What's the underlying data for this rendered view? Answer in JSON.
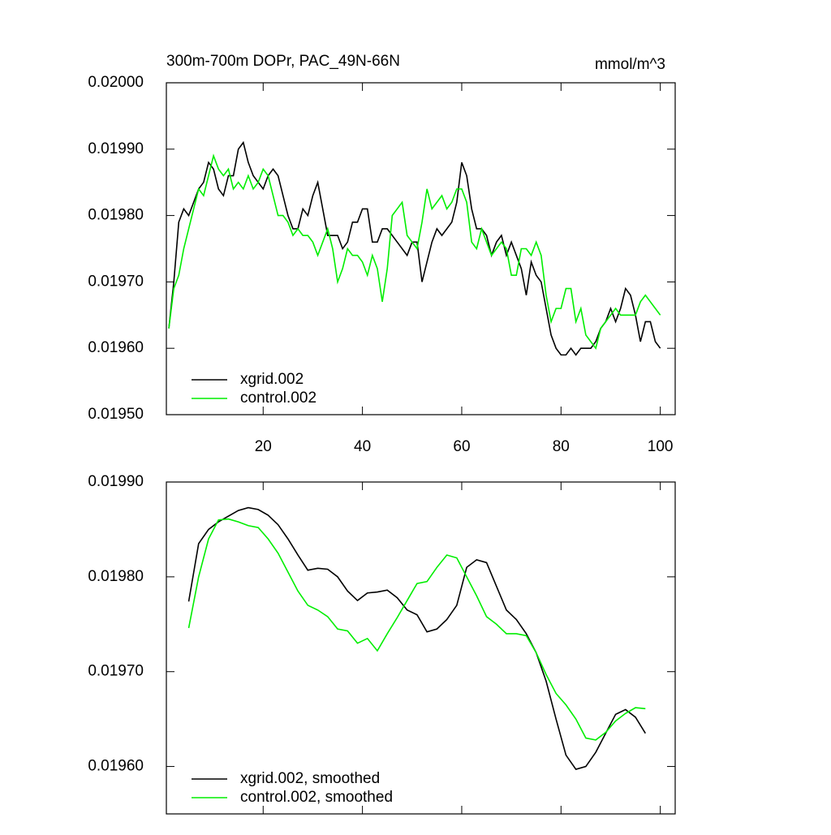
{
  "chart_data": [
    {
      "type": "line",
      "title": "300m-700m DOPr, PAC_49N-66N",
      "units": "mmol/m^3",
      "x": [
        1,
        2,
        3,
        4,
        5,
        6,
        7,
        8,
        9,
        10,
        11,
        12,
        13,
        14,
        15,
        16,
        17,
        18,
        19,
        20,
        21,
        22,
        23,
        24,
        25,
        26,
        27,
        28,
        29,
        30,
        31,
        32,
        33,
        34,
        35,
        36,
        37,
        38,
        39,
        40,
        41,
        42,
        43,
        44,
        45,
        46,
        47,
        48,
        49,
        50,
        51,
        52,
        53,
        54,
        55,
        56,
        57,
        58,
        59,
        60,
        61,
        62,
        63,
        64,
        65,
        66,
        67,
        68,
        69,
        70,
        71,
        72,
        73,
        74,
        75,
        76,
        77,
        78,
        79,
        80,
        81,
        82,
        83,
        84,
        85,
        86,
        87,
        88,
        89,
        90,
        91,
        92,
        93,
        94,
        95,
        96,
        97,
        98,
        99,
        100
      ],
      "series": [
        {
          "name": "xgrid.002",
          "color": "#000000",
          "values": [
            0.01963,
            0.0197,
            0.01979,
            0.01981,
            0.0198,
            0.01982,
            0.01984,
            0.01985,
            0.01988,
            0.01987,
            0.01984,
            0.01983,
            0.01986,
            0.01986,
            0.0199,
            0.01991,
            0.01988,
            0.01986,
            0.01985,
            0.01984,
            0.01986,
            0.01987,
            0.01986,
            0.01983,
            0.0198,
            0.01978,
            0.01978,
            0.01981,
            0.0198,
            0.01983,
            0.01985,
            0.01981,
            0.01977,
            0.01977,
            0.01977,
            0.01975,
            0.01976,
            0.01979,
            0.01979,
            0.01981,
            0.01981,
            0.01976,
            0.01976,
            0.01978,
            0.01978,
            0.01977,
            0.01976,
            0.01975,
            0.01974,
            0.01976,
            0.01976,
            0.0197,
            0.01973,
            0.01976,
            0.01978,
            0.01977,
            0.01978,
            0.01979,
            0.01982,
            0.01988,
            0.01986,
            0.01981,
            0.01978,
            0.01978,
            0.01977,
            0.01974,
            0.01976,
            0.01977,
            0.01974,
            0.01976,
            0.01974,
            0.01972,
            0.01968,
            0.01973,
            0.01971,
            0.0197,
            0.01966,
            0.01962,
            0.0196,
            0.01959,
            0.01959,
            0.0196,
            0.01959,
            0.0196,
            0.0196,
            0.0196,
            0.01961,
            0.01963,
            0.01964,
            0.01966,
            0.01964,
            0.01966,
            0.01969,
            0.01968,
            0.01965,
            0.01961,
            0.01964,
            0.01964,
            0.01961,
            0.0196
          ]
        },
        {
          "name": "control.002",
          "color": "#00ee00",
          "values": [
            0.01963,
            0.01969,
            0.01971,
            0.01975,
            0.01978,
            0.01981,
            0.01984,
            0.01983,
            0.01986,
            0.01989,
            0.01987,
            0.01986,
            0.01987,
            0.01984,
            0.01985,
            0.01984,
            0.01986,
            0.01984,
            0.01985,
            0.01987,
            0.01986,
            0.01983,
            0.0198,
            0.0198,
            0.01979,
            0.01977,
            0.01978,
            0.01977,
            0.01977,
            0.01976,
            0.01974,
            0.01976,
            0.01978,
            0.01975,
            0.0197,
            0.01972,
            0.01975,
            0.01974,
            0.01974,
            0.01973,
            0.01971,
            0.01974,
            0.01972,
            0.01967,
            0.01972,
            0.0198,
            0.01981,
            0.01982,
            0.01977,
            0.01976,
            0.01975,
            0.01979,
            0.01984,
            0.01981,
            0.01982,
            0.01983,
            0.01981,
            0.01982,
            0.01984,
            0.01984,
            0.01982,
            0.01976,
            0.01975,
            0.01978,
            0.01976,
            0.01974,
            0.01975,
            0.01976,
            0.01975,
            0.01971,
            0.01971,
            0.01975,
            0.01975,
            0.01974,
            0.01976,
            0.01974,
            0.01968,
            0.01964,
            0.01966,
            0.01966,
            0.01969,
            0.01969,
            0.01964,
            0.01966,
            0.01962,
            0.01961,
            0.0196,
            0.01963,
            0.01964,
            0.01965,
            0.01966,
            0.01965,
            0.01965,
            0.01965,
            0.01965,
            0.01967,
            0.01968,
            0.01967,
            0.01966,
            0.01965
          ]
        }
      ],
      "xlim": [
        0.5,
        103
      ],
      "xticks": [
        20,
        40,
        60,
        80,
        100
      ],
      "ylim": [
        0.0195,
        0.02
      ],
      "yticks": [
        {
          "value": 0.0195,
          "label": "0.01950"
        },
        {
          "value": 0.0196,
          "label": "0.01960"
        },
        {
          "value": 0.0197,
          "label": "0.01970"
        },
        {
          "value": 0.0198,
          "label": "0.01980"
        },
        {
          "value": 0.0199,
          "label": "0.01990"
        },
        {
          "value": 0.02,
          "label": "0.02000"
        }
      ],
      "legend": "lower left"
    },
    {
      "type": "line",
      "x": [
        5,
        7,
        9,
        11,
        13,
        15,
        17,
        19,
        21,
        23,
        25,
        27,
        29,
        31,
        33,
        35,
        37,
        39,
        41,
        43,
        45,
        47,
        49,
        51,
        53,
        55,
        57,
        59,
        61,
        63,
        65,
        67,
        69,
        71,
        73,
        75,
        77,
        79,
        81,
        83,
        85,
        87,
        89,
        91,
        93,
        95,
        97
      ],
      "series": [
        {
          "name": "xgrid.002, smoothed",
          "color": "#000000",
          "values": [
            0.019774,
            0.019835,
            0.01985,
            0.019858,
            0.019864,
            0.01987,
            0.019873,
            0.019871,
            0.019865,
            0.019855,
            0.01984,
            0.019823,
            0.019807,
            0.019809,
            0.019808,
            0.0198,
            0.019785,
            0.019775,
            0.019783,
            0.019784,
            0.019786,
            0.019778,
            0.019765,
            0.01976,
            0.019742,
            0.019745,
            0.019755,
            0.01977,
            0.01981,
            0.019818,
            0.019815,
            0.01979,
            0.019765,
            0.019755,
            0.01974,
            0.01972,
            0.01969,
            0.01965,
            0.019612,
            0.019597,
            0.0196,
            0.019615,
            0.019635,
            0.019655,
            0.01966,
            0.019652,
            0.019635
          ]
        },
        {
          "name": "control.002, smoothed",
          "color": "#00ee00",
          "values": [
            0.019746,
            0.0198,
            0.01984,
            0.01986,
            0.019861,
            0.019858,
            0.019854,
            0.019852,
            0.01984,
            0.019825,
            0.019805,
            0.019785,
            0.01977,
            0.019765,
            0.019758,
            0.019745,
            0.019743,
            0.01973,
            0.019735,
            0.019722,
            0.01974,
            0.019757,
            0.019775,
            0.019793,
            0.019795,
            0.01981,
            0.019823,
            0.01982,
            0.0198,
            0.01978,
            0.019758,
            0.01975,
            0.01974,
            0.01974,
            0.019738,
            0.01972,
            0.019697,
            0.019677,
            0.019665,
            0.01965,
            0.01963,
            0.019628,
            0.019636,
            0.019648,
            0.019656,
            0.019662,
            0.019661
          ]
        }
      ],
      "xlim": [
        0.5,
        103
      ],
      "ylim": [
        0.01955,
        0.0199
      ],
      "yticks": [
        {
          "value": 0.0196,
          "label": "0.01960"
        },
        {
          "value": 0.0197,
          "label": "0.01970"
        },
        {
          "value": 0.0198,
          "label": "0.01980"
        },
        {
          "value": 0.0199,
          "label": "0.01990"
        }
      ],
      "legend": "lower left"
    }
  ]
}
